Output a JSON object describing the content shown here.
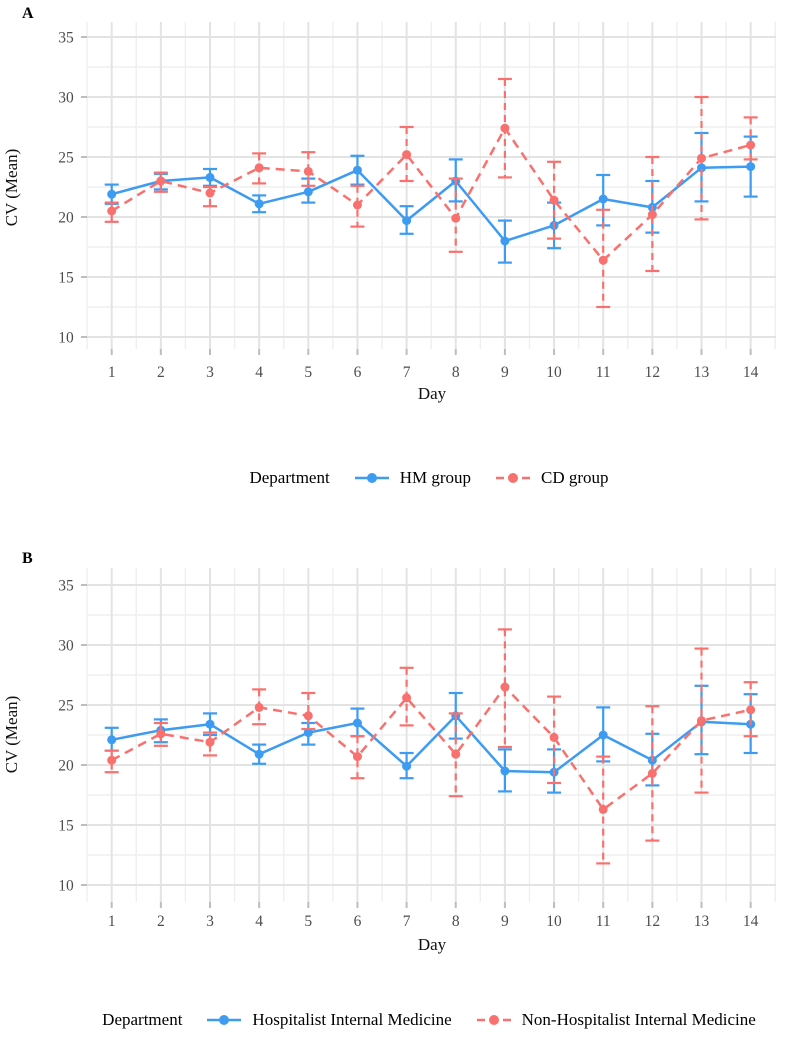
{
  "page": {
    "background": "#ffffff"
  },
  "colors": {
    "hm_blue": "#3d9bf2",
    "cd_red": "#f8716e",
    "grid_major": "#e3e3e3",
    "grid_minor": "#efefef",
    "tick_mark": "#bdbdbd",
    "tick_label": "#4d4d4d",
    "axis_title": "#111111"
  },
  "chart_data": [
    {
      "type": "line",
      "panel_label": "A",
      "xlabel": "Day",
      "ylabel": "CV (Mean)",
      "x": [
        1,
        2,
        3,
        4,
        5,
        6,
        7,
        8,
        9,
        10,
        11,
        12,
        13,
        14
      ],
      "yticks": [
        10,
        15,
        20,
        25,
        30,
        35
      ],
      "ylim": [
        9.0,
        36.3
      ],
      "grid": "major+minor",
      "legend_position": "bottom",
      "legend_title": "Department",
      "series": [
        {
          "name": "HM group",
          "color_key": "hm_blue",
          "line_style": "solid",
          "values": [
            21.9,
            23.0,
            23.3,
            21.1,
            22.1,
            23.9,
            19.7,
            23.0,
            18.0,
            19.3,
            21.5,
            20.8,
            24.1,
            24.2
          ],
          "err_low": [
            21.1,
            22.3,
            22.6,
            20.4,
            21.2,
            22.7,
            18.6,
            21.3,
            16.2,
            17.4,
            19.3,
            18.7,
            21.3,
            21.7
          ],
          "err_high": [
            22.7,
            23.6,
            24.0,
            21.8,
            23.2,
            25.1,
            20.9,
            24.8,
            19.7,
            21.2,
            23.5,
            23.0,
            27.0,
            26.7
          ]
        },
        {
          "name": "CD group",
          "color_key": "cd_red",
          "line_style": "dashed",
          "values": [
            20.5,
            23.0,
            22.0,
            24.1,
            23.8,
            21.0,
            25.2,
            19.9,
            27.4,
            21.4,
            16.4,
            20.2,
            24.9,
            26.0
          ],
          "err_low": [
            19.6,
            22.1,
            20.9,
            22.8,
            22.6,
            19.2,
            23.0,
            17.1,
            23.3,
            18.2,
            12.5,
            15.5,
            19.8,
            24.8
          ],
          "err_high": [
            21.2,
            23.7,
            22.5,
            25.3,
            25.4,
            22.6,
            27.5,
            23.2,
            31.5,
            24.6,
            20.6,
            25.0,
            30.0,
            28.3
          ]
        }
      ]
    },
    {
      "type": "line",
      "panel_label": "B",
      "xlabel": "Day",
      "ylabel": "CV (Mean)",
      "x": [
        1,
        2,
        3,
        4,
        5,
        6,
        7,
        8,
        9,
        10,
        11,
        12,
        13,
        14
      ],
      "yticks": [
        10,
        15,
        20,
        25,
        30,
        35
      ],
      "ylim": [
        8.6,
        36.4
      ],
      "grid": "major+minor",
      "legend_position": "bottom",
      "legend_title": "Department",
      "series": [
        {
          "name": "Hospitalist Internal Medicine",
          "color_key": "hm_blue",
          "line_style": "solid",
          "values": [
            22.1,
            22.9,
            23.4,
            20.9,
            22.7,
            23.5,
            19.9,
            24.1,
            19.5,
            19.4,
            22.5,
            20.4,
            23.6,
            23.4
          ],
          "err_low": [
            21.2,
            21.9,
            22.5,
            20.1,
            21.7,
            22.4,
            18.9,
            22.2,
            17.8,
            17.7,
            20.3,
            18.3,
            20.9,
            21.0
          ],
          "err_high": [
            23.1,
            23.8,
            24.3,
            21.7,
            23.5,
            24.7,
            21.0,
            26.0,
            21.3,
            21.3,
            24.8,
            22.6,
            26.6,
            25.9
          ]
        },
        {
          "name": "Non-Hospitalist Internal Medicine",
          "color_key": "cd_red",
          "line_style": "dashed",
          "values": [
            20.4,
            22.6,
            21.9,
            24.8,
            24.1,
            20.7,
            25.6,
            20.9,
            26.5,
            22.3,
            16.3,
            19.3,
            23.7,
            24.6
          ],
          "err_low": [
            19.4,
            21.6,
            20.8,
            23.4,
            23.0,
            18.9,
            23.3,
            17.4,
            21.5,
            18.5,
            11.8,
            13.7,
            17.7,
            22.4
          ],
          "err_high": [
            21.2,
            23.5,
            22.7,
            26.3,
            26.0,
            22.4,
            28.1,
            24.3,
            31.3,
            25.7,
            20.7,
            24.9,
            29.7,
            26.9
          ]
        }
      ]
    }
  ]
}
